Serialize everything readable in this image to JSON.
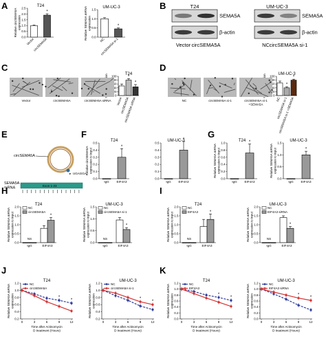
{
  "panel_letters": [
    "A",
    "B",
    "C",
    "D",
    "E",
    "F",
    "G",
    "H",
    "I",
    "J",
    "K"
  ],
  "charts": {
    "A1": {
      "title": "T24",
      "ylabel": "Relative circSEMA5A\nexpression",
      "categories": [
        "Vector",
        "circSEMA5A"
      ],
      "values": [
        1.0,
        1.9
      ],
      "errors": [
        0.05,
        0.12
      ],
      "ylim": [
        0,
        2.5
      ],
      "yticks": [
        "0.0",
        "0.5",
        "1.0",
        "1.5",
        "2.0",
        "2.5"
      ],
      "sig": [
        "",
        "*"
      ],
      "colors": [
        "#ffffff",
        "#555555"
      ]
    },
    "A2": {
      "title": "UM-UC-3",
      "ylabel": "Relative SEMA5A mRNA\nexpression",
      "categories": [
        "NC",
        "circSEMA5A si-1"
      ],
      "values": [
        1.0,
        0.45
      ],
      "errors": [
        0.06,
        0.05
      ],
      "ylim": [
        0,
        1.5
      ],
      "yticks": [
        "0.0",
        "0.5",
        "1.0",
        "1.5"
      ],
      "sig": [
        "",
        "*"
      ],
      "colors": [
        "#ffffff",
        "#555555"
      ]
    },
    "C": {
      "title": "T24",
      "ylabel": "% Tube formation",
      "categories": [
        "Vector",
        "circSEMA5A",
        "circSEMA5A siRNA"
      ],
      "values": [
        50,
        80,
        45
      ],
      "errors": [
        10,
        8,
        12
      ],
      "ylim": [
        0,
        100
      ],
      "yticks": [
        "0",
        "20",
        "40",
        "60",
        "80",
        "100"
      ],
      "sig": [
        "",
        "*",
        "*"
      ],
      "colors": [
        "#ffffff",
        "#bbbbbb",
        "#333333"
      ]
    },
    "D": {
      "title": "UM-UC-3",
      "ylabel": "% Tube formation",
      "categories": [
        "NC",
        "circSEMA5A si-1",
        "circSEMA5A si-1 +SEMA5A"
      ],
      "values": [
        65,
        40,
        80
      ],
      "errors": [
        10,
        6,
        5
      ],
      "ylim": [
        0,
        100
      ],
      "yticks": [
        "0",
        "20",
        "40",
        "60",
        "80",
        "100"
      ],
      "sig": [
        "",
        "*",
        "*"
      ],
      "colors": [
        "#ffffff",
        "#aaaaaa",
        "#5a2a10"
      ]
    },
    "F1": {
      "title": "T24",
      "ylabel": "Relative circSEMA5A\nexpression to input",
      "categories": [
        "IgG",
        "EIF4A3"
      ],
      "values": [
        0.0,
        0.3
      ],
      "errors": [
        0,
        0.12
      ],
      "ylim": [
        0,
        0.5
      ],
      "yticks": [
        "0.0",
        "0.1",
        "0.2",
        "0.3",
        "0.4",
        "0.5"
      ],
      "sig": [
        "",
        "*"
      ],
      "colors": [
        "#ffffff",
        "#999999"
      ]
    },
    "F2": {
      "title": "UM-UC-3",
      "ylabel": "",
      "categories": [
        "IgG",
        "EIF4A3"
      ],
      "values": [
        0.0,
        0.4
      ],
      "errors": [
        0,
        0.12
      ],
      "ylim": [
        0,
        0.5
      ],
      "yticks": [
        "0.0",
        "0.1",
        "0.2",
        "0.3",
        "0.4",
        "0.5"
      ],
      "sig": [
        "",
        "*"
      ],
      "colors": [
        "#ffffff",
        "#999999"
      ]
    },
    "G1": {
      "title": "T24",
      "ylabel": "Relative SEMA5A mRNA\nexpression to input",
      "categories": [
        "IgG",
        "EIF4A3"
      ],
      "values": [
        0.0,
        0.72
      ],
      "errors": [
        0,
        0.25
      ],
      "ylim": [
        0,
        1.0
      ],
      "yticks": [
        "0.0",
        "0.2",
        "0.4",
        "0.6",
        "0.8",
        "1.0"
      ],
      "sig": [
        "",
        "*"
      ],
      "colors": [
        "#ffffff",
        "#999999"
      ]
    },
    "G2": {
      "title": "UM-UC-3",
      "ylabel": "Relative SEMA5A mRNA\nexpression to input",
      "categories": [
        "IgG",
        "EIF4A3"
      ],
      "values": [
        0.0,
        1.0
      ],
      "errors": [
        0,
        0.15
      ],
      "ylim": [
        0,
        1.5
      ],
      "yticks": [
        "0.0",
        "0.5",
        "1.0",
        "1.5"
      ],
      "sig": [
        "",
        "*"
      ],
      "colors": [
        "#ffffff",
        "#999999"
      ]
    },
    "H1": {
      "title": "T24",
      "ylabel": "Relative SEMA5A mRNA\nexpression to input",
      "groups": [
        "IgG",
        "EIF4A3"
      ],
      "series": [
        {
          "name": "NC",
          "values": [
            0,
            0.8
          ],
          "errors": [
            0,
            0.15
          ],
          "color": "#ffffff"
        },
        {
          "name": "circSEMA5A",
          "values": [
            0,
            1.25
          ],
          "errors": [
            0,
            0.15
          ],
          "color": "#999999"
        }
      ],
      "ns": [
        true,
        false
      ],
      "sig": "*",
      "ylim": [
        0,
        2.0
      ],
      "yticks": [
        "0.0",
        "0.5",
        "1.0",
        "1.5",
        "2.0"
      ]
    },
    "H2": {
      "title": "UM-UC-3",
      "ylabel": "Relative SEMA5A mRNA\nexpression to input",
      "groups": [
        "IgG",
        "EIF4A3"
      ],
      "series": [
        {
          "name": "NC",
          "values": [
            0,
            0.95
          ],
          "errors": [
            0,
            0.1
          ],
          "color": "#ffffff"
        },
        {
          "name": "circSEMA5A si-1",
          "values": [
            0,
            0.55
          ],
          "errors": [
            0,
            0.08
          ],
          "color": "#999999"
        }
      ],
      "ns": [
        true,
        false
      ],
      "sig": "*",
      "ylim": [
        0,
        1.5
      ],
      "yticks": [
        "0.0",
        "0.5",
        "1.0",
        "1.5"
      ]
    },
    "I1": {
      "title": "T24",
      "ylabel": "Relative SEMA5A mRNA\nexpression to input",
      "groups": [
        "IgG",
        "EIF4A3"
      ],
      "series": [
        {
          "name": "NC",
          "values": [
            0,
            0.9
          ],
          "errors": [
            0,
            0.4
          ],
          "color": "#ffffff"
        },
        {
          "name": "EIF4A3",
          "values": [
            0,
            1.3
          ],
          "errors": [
            0,
            0.3
          ],
          "color": "#999999"
        }
      ],
      "ns": [
        true,
        false
      ],
      "sig": "*",
      "ylim": [
        0,
        2.0
      ],
      "yticks": [
        "0.0",
        "0.5",
        "1.0",
        "1.5",
        "2.0"
      ]
    },
    "I2": {
      "title": "UM-UC-3",
      "ylabel": "Relative SEMA5A mRNA\nexpression to input",
      "groups": [
        "IgG",
        "EIF4A3"
      ],
      "series": [
        {
          "name": "NC",
          "values": [
            0,
            1.4
          ],
          "errors": [
            0,
            0.1
          ],
          "color": "#ffffff"
        },
        {
          "name": "EIF4A3 siRNA",
          "values": [
            0,
            0.8
          ],
          "errors": [
            0,
            0.1
          ],
          "color": "#999999"
        }
      ],
      "ns": [
        true,
        false
      ],
      "sig": "*",
      "ylim": [
        0,
        2.0
      ],
      "yticks": [
        "0.0",
        "0.5",
        "1.0",
        "1.5",
        "2.0"
      ]
    },
    "J1": {
      "title": "T24",
      "ylabel": "Relative SEMA5A mRNA\nexpression",
      "xlabel": "Time after Actinomycin\nD treatment (Hours)",
      "x": [
        0,
        3,
        6,
        9,
        12
      ],
      "series": [
        {
          "name": "NC",
          "values": [
            1.0,
            0.9,
            0.78,
            0.72,
            0.64
          ],
          "color": "#2a3a9a"
        },
        {
          "name": "circSEMA5A",
          "values": [
            1.0,
            0.85,
            0.68,
            0.55,
            0.42
          ],
          "color": "#d43030"
        }
      ],
      "sig_x": [
        9,
        12
      ],
      "ylim": [
        0.2,
        1.2
      ],
      "yticks": [
        "0.2",
        "0.4",
        "0.6",
        "0.8",
        "1.0",
        "1.2"
      ],
      "xticks": [
        "0",
        "3",
        "6",
        "9",
        "12"
      ]
    },
    "J2": {
      "title": "UM-UC-3",
      "ylabel": "Relative SEMA5A mRNA\nexpression",
      "xlabel": "Time after Actinomycin\nD treatment (Hours)",
      "x": [
        0,
        3,
        6,
        9,
        12
      ],
      "series": [
        {
          "name": "NC",
          "values": [
            1.0,
            0.85,
            0.72,
            0.56,
            0.46
          ],
          "color": "#2a3a9a"
        },
        {
          "name": "circSEMA5A si-1",
          "values": [
            1.0,
            0.92,
            0.8,
            0.68,
            0.6
          ],
          "color": "#d43030"
        }
      ],
      "sig_x": [
        9,
        12
      ],
      "ylim": [
        0.2,
        1.2
      ],
      "yticks": [
        "0.2",
        "0.4",
        "0.6",
        "0.8",
        "1.0",
        "1.2"
      ],
      "xticks": [
        "0",
        "3",
        "6",
        "9",
        "12"
      ]
    },
    "K1": {
      "title": "T24",
      "ylabel": "Relative SEMA5A mRNA\nexpression",
      "xlabel": "Time after Actinomycin\nD treatment (Hours)",
      "x": [
        0,
        3,
        6,
        9,
        12
      ],
      "series": [
        {
          "name": "NC",
          "values": [
            1.0,
            0.92,
            0.8,
            0.72,
            0.62
          ],
          "color": "#2a3a9a"
        },
        {
          "name": "EIF4A3",
          "values": [
            1.0,
            0.85,
            0.7,
            0.56,
            0.42
          ],
          "color": "#d43030"
        }
      ],
      "sig_x": [
        9,
        12
      ],
      "ylim": [
        0.0,
        1.2
      ],
      "yticks": [
        "0.0",
        "0.2",
        "0.4",
        "0.6",
        "0.8",
        "1.0",
        "1.2"
      ],
      "xticks": [
        "0",
        "3",
        "6",
        "9",
        "12"
      ]
    },
    "K2": {
      "title": "UM-UC-3",
      "ylabel": "Relative SEMA5A mRNA\nexpression",
      "xlabel": "Time after Actinomycin\nD treatment (Hours)",
      "x": [
        0,
        3,
        6,
        9,
        12
      ],
      "series": [
        {
          "name": "NC",
          "values": [
            1.0,
            0.84,
            0.66,
            0.46,
            0.3
          ],
          "color": "#2a3a9a"
        },
        {
          "name": "EIF4A3 siRNA",
          "values": [
            1.0,
            0.9,
            0.8,
            0.7,
            0.62
          ],
          "color": "#d43030"
        }
      ],
      "sig_x": [
        9,
        12
      ],
      "ylim": [
        0.0,
        1.2
      ],
      "yticks": [
        "0.0",
        "0.2",
        "0.4",
        "0.6",
        "0.8",
        "1.0",
        "1.2"
      ],
      "xticks": [
        "0",
        "3",
        "6",
        "9",
        "12"
      ]
    }
  },
  "blots": {
    "B1": {
      "title": "T24",
      "rows": [
        "SEMA5A",
        "β-actin"
      ],
      "lanes": [
        "Vector",
        "circSEMA5A"
      ],
      "intensity": [
        [
          0.55,
          0.9
        ],
        [
          0.85,
          0.85
        ]
      ]
    },
    "B2": {
      "title": "UM-UC-3",
      "rows": [
        "SEMA5A",
        "β-actin"
      ],
      "lanes": [
        "NC",
        "circSEMA5A si-1"
      ],
      "intensity": [
        [
          0.85,
          0.5
        ],
        [
          0.85,
          0.85
        ]
      ]
    }
  },
  "micro": {
    "C": {
      "labels": [
        "Vector",
        "circSEMA5A",
        "circSEMA5A siRNA"
      ]
    },
    "D": {
      "labels": [
        "NC",
        "circSEMA5A si-1",
        "circSEMA5A si-1\n+SEMA5A"
      ]
    }
  },
  "schematic_E": {
    "circ_label": "circSEMA5A",
    "motif": "UGAGGA",
    "mrna_label": "SEMA5A\nmRNA",
    "exon_label": "Exon 1-23"
  }
}
